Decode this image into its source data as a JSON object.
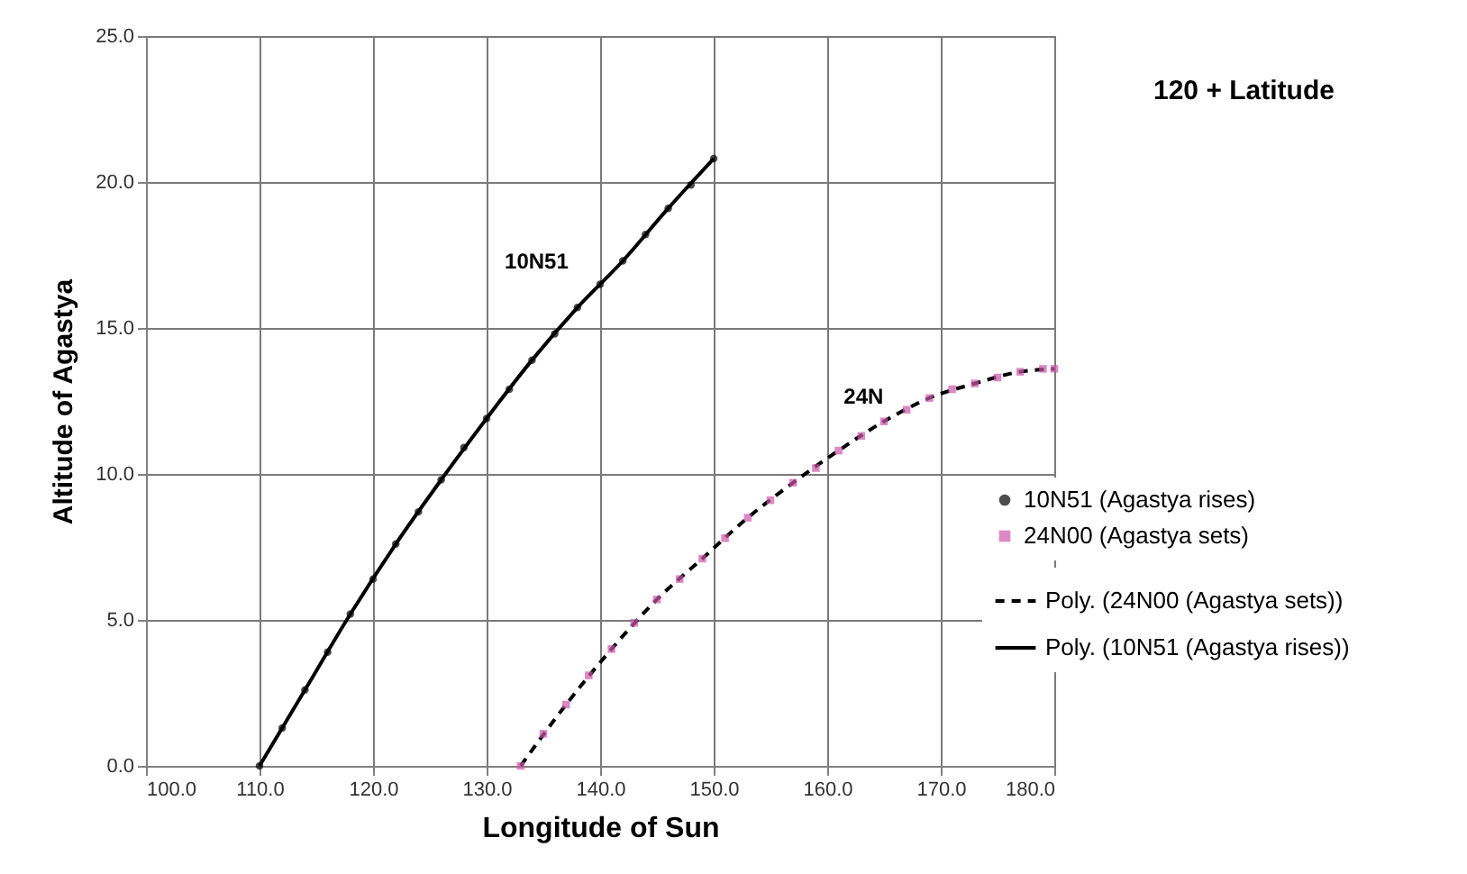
{
  "chart_data": {
    "type": "scatter",
    "xlabel": "Longitude of Sun",
    "ylabel": "Altitude of Agastya",
    "xlim": [
      100,
      180
    ],
    "xticks": [
      {
        "value": 100,
        "label": "100.0"
      },
      {
        "value": 110,
        "label": "110.0"
      },
      {
        "value": 120,
        "label": "120.0"
      },
      {
        "value": 130,
        "label": "130.0"
      },
      {
        "value": 140,
        "label": "140.0"
      },
      {
        "value": 150,
        "label": "150.0"
      },
      {
        "value": 160,
        "label": "160.0"
      },
      {
        "value": 170,
        "label": "170.0"
      },
      {
        "value": 180,
        "label": "180.0"
      }
    ],
    "ylim": [
      0,
      25
    ],
    "yticks": [
      {
        "value": 0,
        "label": "0.0"
      },
      {
        "value": 5,
        "label": "5.0"
      },
      {
        "value": 10,
        "label": "10.0"
      },
      {
        "value": 15,
        "label": "15.0"
      },
      {
        "value": 20,
        "label": "20.0"
      },
      {
        "value": 25,
        "label": "25.0"
      }
    ],
    "grid": true,
    "legend": "bottom right",
    "annotations": [
      "10N51",
      "24N",
      "120 + Latitude"
    ],
    "series": [
      {
        "name": "10N51 (Agastya rises)",
        "marker": "circle",
        "color": "#000000",
        "x": [
          110,
          112,
          114,
          116,
          118,
          120,
          122,
          124,
          126,
          128,
          130,
          132,
          134,
          136,
          138,
          140,
          142,
          144,
          146,
          148,
          150
        ],
        "values": [
          0,
          1.3,
          2.6,
          3.9,
          5.2,
          6.4,
          7.6,
          8.7,
          9.8,
          10.9,
          11.9,
          12.9,
          13.9,
          14.8,
          15.7,
          16.5,
          17.3,
          18.2,
          19.1,
          19.9,
          20.8
        ]
      },
      {
        "name": "24N00 (Agastya sets)",
        "marker": "square",
        "color": "#cc55aa",
        "x": [
          133,
          135,
          137,
          139,
          141,
          143,
          145,
          147,
          149,
          151,
          153,
          155,
          157,
          159,
          161,
          163,
          165,
          167,
          169,
          171,
          173,
          175,
          177,
          179,
          180
        ],
        "values": [
          0,
          1.1,
          2.1,
          3.1,
          4.0,
          4.9,
          5.7,
          6.4,
          7.1,
          7.8,
          8.5,
          9.1,
          9.7,
          10.2,
          10.8,
          11.3,
          11.8,
          12.2,
          12.6,
          12.9,
          13.1,
          13.3,
          13.5,
          13.6,
          13.6
        ]
      },
      {
        "name": "Poly. (24N00 (Agastya sets))",
        "type": "line",
        "line_style": "dashed",
        "color": "#000000",
        "x": [
          133,
          137,
          141,
          145,
          149,
          153,
          157,
          161,
          165,
          169,
          173,
          177,
          180
        ],
        "values": [
          0,
          2.1,
          4.0,
          5.7,
          7.1,
          8.5,
          9.7,
          10.8,
          11.8,
          12.6,
          13.1,
          13.5,
          13.6
        ]
      },
      {
        "name": "Poly. (10N51 (Agastya rises))",
        "type": "line",
        "line_style": "solid",
        "color": "#000000",
        "x": [
          110,
          114,
          118,
          122,
          126,
          130,
          134,
          138,
          142,
          146,
          150
        ],
        "values": [
          0,
          2.6,
          5.2,
          7.6,
          9.8,
          11.9,
          13.9,
          15.7,
          17.3,
          19.1,
          20.8
        ]
      }
    ]
  }
}
